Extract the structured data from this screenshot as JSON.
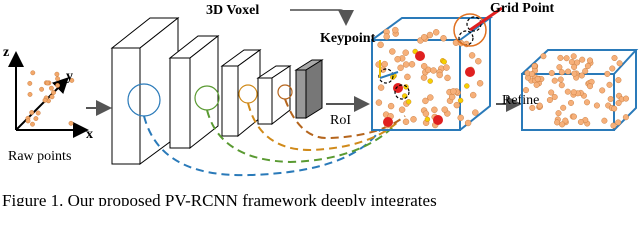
{
  "labels": {
    "voxel": "3D Voxel",
    "grid_point": "Grid Point",
    "keypoint": "Keypoint",
    "axis_z": "z",
    "axis_y": "y",
    "axis_x": "x",
    "raw_points": "Raw points",
    "roi": "RoI",
    "refine": "Refine"
  },
  "caption": "Figure 1. Our proposed PV-RCNN framework deeply integrates"
}
